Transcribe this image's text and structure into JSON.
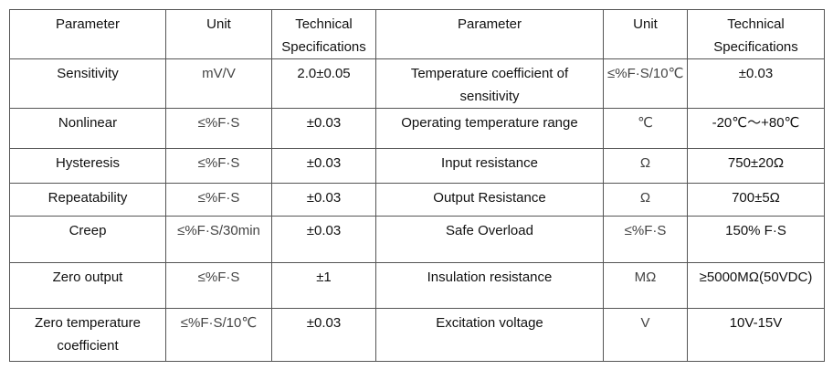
{
  "table": {
    "headers": [
      "Parameter",
      "Unit",
      "Technical Specifications",
      "Parameter",
      "Unit",
      "Technical Specifications"
    ],
    "rows": [
      [
        "Sensitivity",
        "mV/V",
        "2.0±0.05",
        "Temperature coefficient of sensitivity",
        "≤%F·S/10℃",
        "±0.03"
      ],
      [
        "Nonlinear",
        "≤%F·S",
        "±0.03",
        "Operating temperature range",
        "℃",
        "-20℃～+80℃"
      ],
      [
        "Hysteresis",
        "≤%F·S",
        "±0.03",
        "Input resistance",
        "Ω",
        "750±20Ω"
      ],
      [
        "Repeatability",
        "≤%F·S",
        "±0.03",
        "Output Resistance",
        "Ω",
        "700±5Ω"
      ],
      [
        "Creep",
        "≤%F·S/30min",
        "±0.03",
        "Safe Overload",
        "≤%F·S",
        "150% F·S"
      ],
      [
        "Zero output",
        "≤%F·S",
        "±1",
        "Insulation resistance",
        "MΩ",
        "≥5000MΩ(50VDC)"
      ],
      [
        "Zero temperature coefficient",
        "≤%F·S/10℃",
        "±0.03",
        "Excitation voltage",
        "V",
        "10V-15V"
      ]
    ]
  }
}
